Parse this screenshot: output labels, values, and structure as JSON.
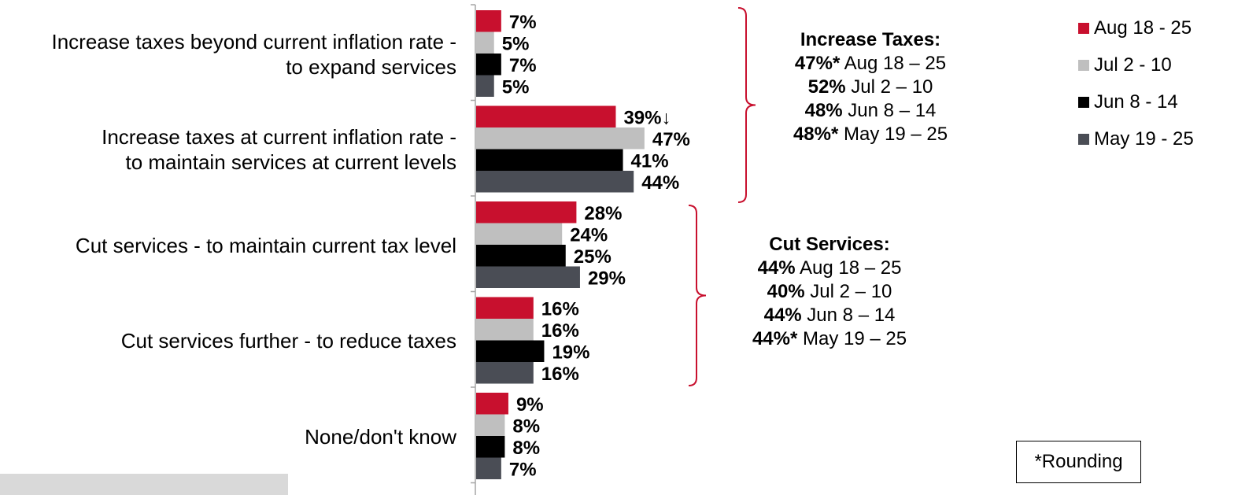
{
  "chart_data": {
    "type": "bar",
    "orientation": "horizontal",
    "categories": [
      [
        "Increase taxes beyond current inflation rate -",
        "to expand services"
      ],
      [
        "Increase taxes at current inflation rate -",
        "to maintain services at current levels"
      ],
      [
        "Cut services - to maintain current tax level"
      ],
      [
        "Cut services further - to reduce taxes"
      ],
      [
        "None/don't know"
      ]
    ],
    "series": [
      {
        "name": "Aug 18 - 25",
        "color": "#c8102e",
        "values": [
          7,
          39,
          28,
          16,
          9
        ],
        "labels": [
          "7%",
          "39%↓",
          "28%",
          "16%",
          "9%"
        ]
      },
      {
        "name": "Jul 2 - 10",
        "color": "#bfbfbf",
        "values": [
          5,
          47,
          24,
          16,
          8
        ],
        "labels": [
          "5%",
          "47%",
          "24%",
          "16%",
          "8%"
        ]
      },
      {
        "name": "Jun 8 - 14",
        "color": "#000000",
        "values": [
          7,
          41,
          25,
          19,
          8
        ],
        "labels": [
          "7%",
          "41%",
          "25%",
          "19%",
          "8%"
        ]
      },
      {
        "name": "May 19 - 25",
        "color": "#4a4d55",
        "values": [
          5,
          44,
          29,
          16,
          7
        ],
        "labels": [
          "5%",
          "44%",
          "29%",
          "16%",
          "7%"
        ]
      }
    ],
    "legend_position": "top-right",
    "grid": false,
    "bracket_color": "#c8102e"
  },
  "summaries": {
    "increase": {
      "title": "Increase Taxes:",
      "rows": [
        {
          "value": "47%*",
          "period": " Aug 18 – 25"
        },
        {
          "value": "52%",
          "period": " Jul 2 – 10"
        },
        {
          "value": "48%",
          "period": " Jun 8 – 14"
        },
        {
          "value": "48%*",
          "period": " May 19 – 25"
        }
      ]
    },
    "cut": {
      "title": "Cut Services:",
      "rows": [
        {
          "value": "44%",
          "period": " Aug 18 – 25"
        },
        {
          "value": "40%",
          "period": " Jul 2 – 10"
        },
        {
          "value": "44%",
          "period": " Jun 8 – 14"
        },
        {
          "value": "44%*",
          "period": " May 19 – 25"
        }
      ]
    }
  },
  "footnote": "*Rounding"
}
